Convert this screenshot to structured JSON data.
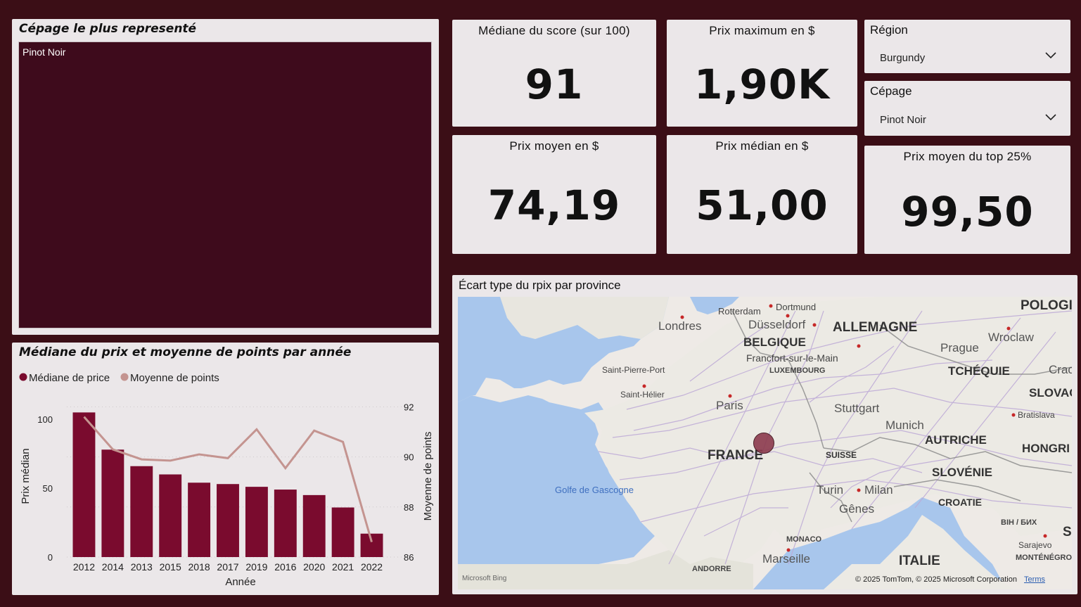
{
  "treemap": {
    "title": "Cépage le plus representé",
    "tile_label": "Pinot Noir",
    "tile_color": "#3e0b1c"
  },
  "kpis": {
    "score": {
      "label": "Médiane du score (sur 100)",
      "value": "91"
    },
    "max_price": {
      "label": "Prix maximum en $",
      "value": "1,90K"
    },
    "mean_price": {
      "label": "Prix moyen en $",
      "value": "74,19"
    },
    "median_price": {
      "label": "Prix médian en $",
      "value": "51,00"
    },
    "top25": {
      "label": "Prix moyen du top 25%",
      "value": "99,50"
    }
  },
  "slicers": {
    "region": {
      "label": "Région",
      "value": "Burgundy"
    },
    "cepage": {
      "label": "Cépage",
      "value": "Pinot Noir"
    }
  },
  "map": {
    "title": "Écart type du rpix par province",
    "countries": [
      "ALLEMAGNE",
      "BELGIQUE",
      "FRANCE",
      "TCHÉQUIE",
      "AUTRICHE",
      "SUISSE",
      "SLOVÉNIE",
      "CROATIE",
      "ITALIE",
      "POLOGI",
      "SLOVAC",
      "HONGRI",
      "LUXEMBOURG",
      "MONACO",
      "ANDORRE",
      "BIH / БИХ",
      "MONTÉNÉGRO"
    ],
    "cities": [
      "Londres",
      "Rotterdam",
      "Dortmund",
      "Düsseldorf",
      "Francfort-sur-le-Main",
      "Prague",
      "Wroclaw",
      "Cracc",
      "Paris",
      "Stuttgart",
      "Munich",
      "Bratislava",
      "Saint-Pierre-Port",
      "Saint-Hélier",
      "Turin",
      "Milan",
      "Gênes",
      "Marseille",
      "Sarajevo",
      "S"
    ],
    "sea": "Golfe de Gascogne",
    "copyright": "© 2025 TomTom, © 2025 Microsoft Corporation",
    "terms": "Terms",
    "logo": "Microsoft Bing"
  },
  "chart": {
    "title": "Médiane du prix et moyenne de points par année",
    "legend": [
      "Médiane de price",
      "Moyenne de points"
    ],
    "xlabel": "Année",
    "ylabel_left": "Prix médian",
    "ylabel_right": "Moyenne de points",
    "colors": {
      "bar": "#7a0b2e",
      "line": "#c49490"
    }
  },
  "chart_data": {
    "type": "bar",
    "categories": [
      "2012",
      "2014",
      "2013",
      "2015",
      "2018",
      "2017",
      "2019",
      "2016",
      "2020",
      "2021",
      "2022"
    ],
    "series": [
      {
        "name": "Médiane de price",
        "type": "bar",
        "axis": "left",
        "values": [
          105,
          78,
          66,
          60,
          54,
          53,
          51,
          49,
          45,
          36,
          17
        ]
      },
      {
        "name": "Moyenne de points",
        "type": "line",
        "axis": "right",
        "values": [
          91.6,
          90.3,
          89.9,
          89.85,
          90.1,
          89.95,
          91.1,
          89.55,
          91.05,
          90.6,
          86.6
        ]
      }
    ],
    "ylim_left": [
      0,
      120
    ],
    "yticks_left": [
      0,
      50,
      100
    ],
    "ylim_right": [
      86,
      92.6
    ],
    "yticks_right": [
      86,
      88,
      90,
      92
    ],
    "xlabel": "Année",
    "ylabel": "Prix médian",
    "y2label": "Moyenne de points",
    "legend_position": "top-left"
  }
}
